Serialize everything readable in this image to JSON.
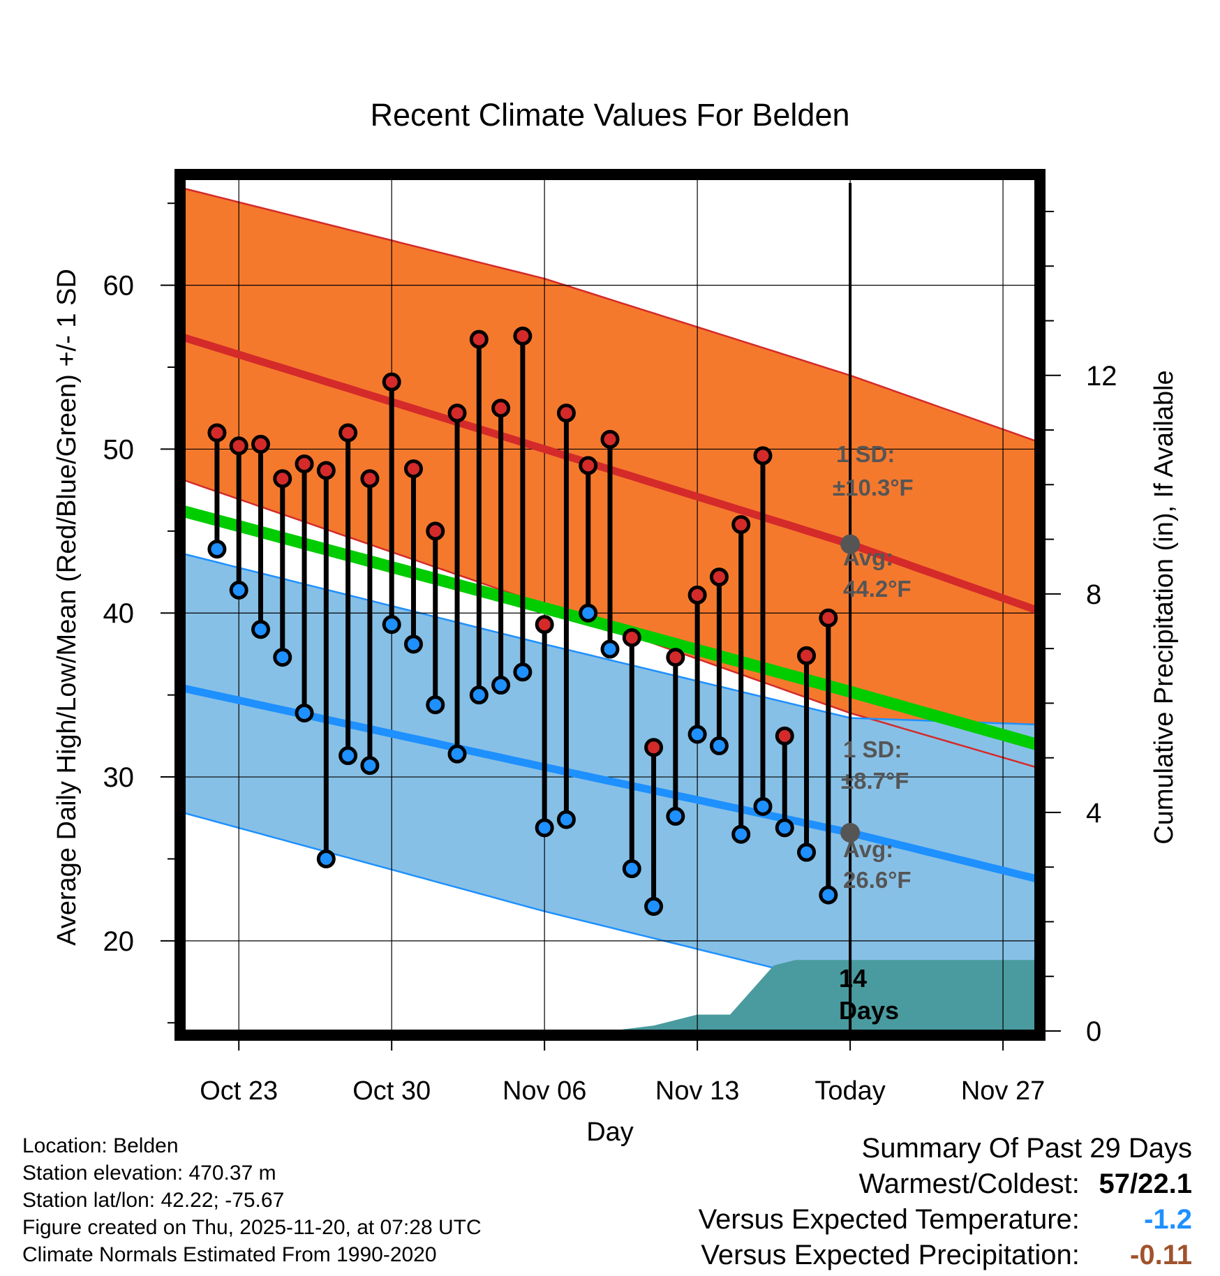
{
  "chart_data": {
    "type": "line",
    "title": "Recent Climate Values For Belden",
    "xlabel": "Day",
    "ylabel": "Average Daily High/Low/Mean (Red/Blue/Green) +/- 1 SD",
    "ylabel_right": "Cumulative Precipitation (in), If Available",
    "x_ticks": [
      "Oct 23",
      "Oct 30",
      "Nov 06",
      "Nov 13",
      "Today",
      "Nov 27"
    ],
    "x_tick_days": [
      2,
      9,
      16,
      23,
      30,
      37
    ],
    "xlim": [
      -0.5,
      38.5
    ],
    "ylim": [
      14.5,
      66.5
    ],
    "y_ticks": [
      "20",
      "30",
      "40",
      "50",
      "60"
    ],
    "y_tick_values": [
      20,
      30,
      40,
      50,
      60
    ],
    "ylim_right": [
      0,
      15.6
    ],
    "y_ticks_right": [
      "0",
      "4",
      "8",
      "12"
    ],
    "y_tick_values_right": [
      0,
      4,
      8,
      12
    ],
    "normals": {
      "high_avg": [
        56.8,
        50.0,
        44.2,
        40.2
      ],
      "high_upper": [
        65.9,
        60.4,
        54.5,
        50.5
      ],
      "high_lower": [
        48.1,
        40.5,
        33.9,
        30.6
      ],
      "low_avg": [
        35.4,
        30.6,
        26.6,
        23.8
      ],
      "low_upper": [
        43.6,
        38.1,
        33.6,
        33.2
      ],
      "low_lower": [
        27.8,
        21.8,
        17.2,
        15.0
      ],
      "mean_avg": [
        46.2,
        40.3,
        35.2,
        32.0
      ],
      "knot_days": [
        -0.5,
        16,
        30,
        38.5
      ]
    },
    "series": [
      {
        "name": "Daily High",
        "color": "#d42a2a",
        "values": [
          51.0,
          50.2,
          50.3,
          48.2,
          49.1,
          48.7,
          51.0,
          48.2,
          54.1,
          48.8,
          45.0,
          52.2,
          56.7,
          52.5,
          56.9,
          39.3,
          52.2,
          49.0,
          50.6,
          38.5,
          31.8,
          37.3,
          41.1,
          42.2,
          45.4,
          49.6,
          32.5,
          37.4,
          39.7
        ]
      },
      {
        "name": "Daily Low",
        "color": "#1e90ff",
        "values": [
          43.9,
          41.4,
          39.0,
          37.3,
          33.9,
          25.0,
          31.3,
          30.7,
          39.3,
          38.1,
          34.4,
          31.4,
          35.0,
          35.6,
          36.4,
          26.9,
          27.4,
          40.0,
          37.8,
          24.4,
          22.1,
          27.6,
          32.6,
          31.9,
          26.5,
          28.2,
          26.9,
          25.4,
          22.8
        ]
      }
    ],
    "precip": {
      "days": [
        -0.5,
        19,
        21,
        23,
        24.5,
        26.5,
        27.5,
        38.5
      ],
      "values": [
        0,
        0,
        0.1,
        0.3,
        0.3,
        1.2,
        1.3,
        1.3
      ]
    },
    "annotations": {
      "high_sd_label": "1 SD:",
      "high_sd_value": "±10.3°F",
      "high_avg_label": "Avg:",
      "high_avg_value": "44.2°F",
      "low_sd_label": "1 SD:",
      "low_sd_value": "±8.7°F",
      "low_avg_label": "Avg:",
      "low_avg_value": "26.6°F",
      "days_count": "14",
      "days_label": "Days"
    },
    "colors": {
      "high_band": "#f5792d",
      "high_line": "#d42a2a",
      "low_band": "#87c0e6",
      "low_line": "#1e90ff",
      "mean_line": "#00cc00",
      "precip_fill": "#4a9b9f",
      "dark_red": "#8b1010",
      "annotation": "#555555"
    }
  },
  "meta": {
    "location": "Location: Belden",
    "elevation": "Station elevation: 470.37 m",
    "latlon": "Station lat/lon: 42.22; -75.67",
    "created": "Figure created on Thu, 2025-11-20, at 07:28 UTC",
    "normals": "Climate Normals Estimated From 1990-2020"
  },
  "summary": {
    "title": "Summary Of Past 29 Days",
    "warm_cold_label": "Warmest/Coldest:",
    "warm_cold_value": "57/22.1",
    "temp_label": "Versus Expected Temperature:",
    "temp_value": "-1.2",
    "temp_color": "#1e90ff",
    "precip_label": "Versus Expected Precipitation:",
    "precip_value": "-0.11",
    "precip_color": "#a0522d"
  }
}
